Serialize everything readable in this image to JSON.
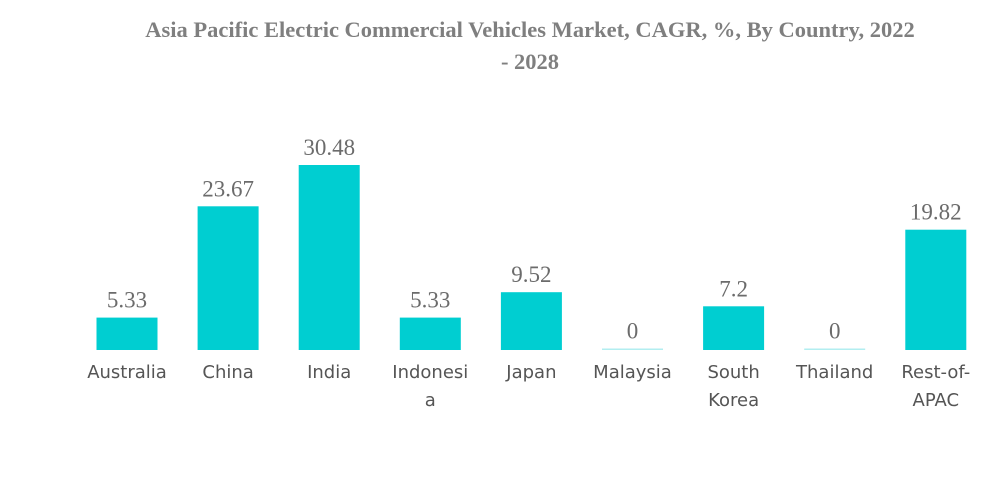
{
  "chart_data": {
    "type": "bar",
    "title": "Asia Pacific Electric Commercial Vehicles Market, CAGR, %, By Country, 2022 - 2028",
    "title_lines": [
      "Asia Pacific Electric Commercial Vehicles Market, CAGR, %, By Country, 2022",
      "- 2028"
    ],
    "categories": [
      "Australia",
      "China",
      "India",
      "Indonesia",
      "Japan",
      "Malaysia",
      "South Korea",
      "Thailand",
      "Rest-of-APAC"
    ],
    "category_label_lines": [
      [
        "Australia"
      ],
      [
        "China"
      ],
      [
        "India"
      ],
      [
        "Indonesi",
        "a"
      ],
      [
        "Japan"
      ],
      [
        "Malaysia"
      ],
      [
        "South",
        "Korea"
      ],
      [
        "Thailand"
      ],
      [
        "Rest-of-",
        "APAC"
      ]
    ],
    "values": [
      5.33,
      23.67,
      30.48,
      5.33,
      9.52,
      0,
      7.2,
      0,
      19.82
    ],
    "data_labels": [
      "5.33",
      "23.67",
      "30.48",
      "5.33",
      "9.52",
      "0",
      "7.2",
      "0",
      "19.82"
    ],
    "xlabel": "",
    "ylabel": "",
    "ylim": [
      0,
      30.48
    ],
    "grid": false,
    "legend": "none",
    "bar_color": "#00CED1",
    "zero_bar_color": "#B2EEF0"
  }
}
